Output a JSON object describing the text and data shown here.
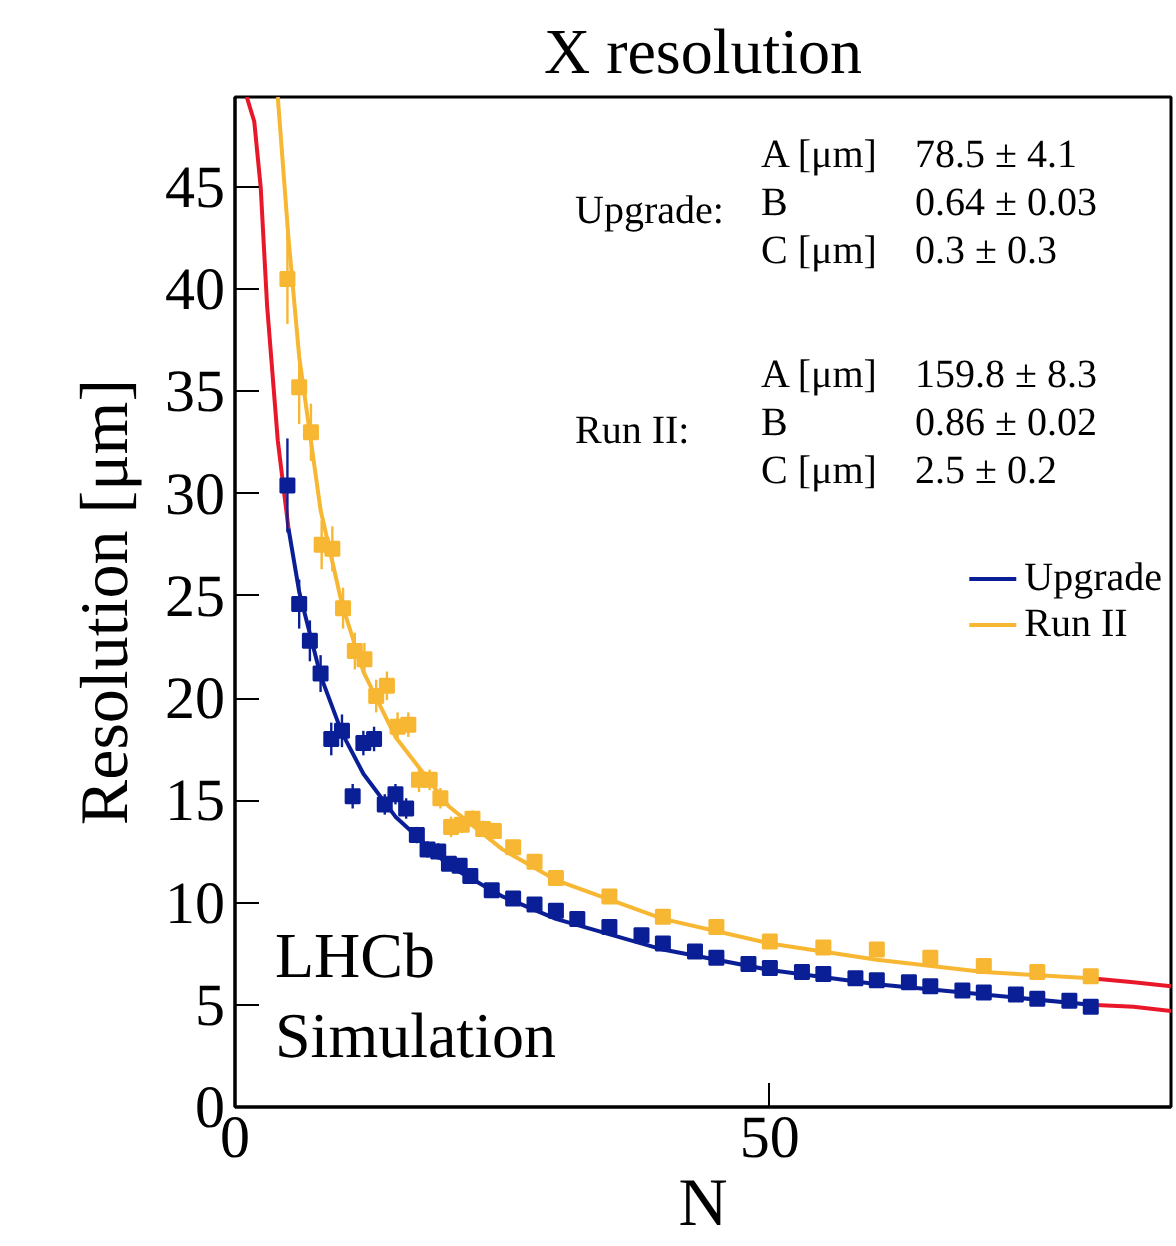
{
  "chart_data": {
    "type": "scatter",
    "title": "X resolution",
    "xlabel": "N",
    "ylabel": "Resolution [μm]",
    "xlim": [
      0,
      87.5
    ],
    "ylim": [
      0,
      49.4
    ],
    "xticks": [
      0,
      50
    ],
    "yticks": [
      0,
      5,
      10,
      15,
      20,
      25,
      30,
      35,
      40,
      45
    ],
    "grid": false,
    "legend": "right",
    "marker": "square",
    "line_style": "solid",
    "annotations": [
      "LHCb",
      "Simulation",
      "Upgrade:",
      "A [μm]",
      "78.5 ± 4.1",
      "B",
      "0.64 ± 0.03",
      "C [μm]",
      "0.3 ± 0.3",
      "Run II:",
      "A [μm]",
      "159.8 ± 8.3",
      "B",
      "0.86 ± 0.02",
      "C [μm]",
      "2.5 ± 0.2"
    ],
    "series": [
      {
        "type": "line",
        "marker": "none",
        "color": "#e8182a",
        "x": [
          1.1,
          1.8,
          2.4,
          3,
          4,
          5
        ],
        "values": [
          49.4,
          48.2,
          45,
          39.2,
          32.6,
          28.3
        ]
      },
      {
        "type": "line",
        "marker": "none",
        "color": "#e8182a",
        "x": [
          80,
          84,
          87.5
        ],
        "values": [
          5.0,
          4.9,
          4.7
        ]
      },
      {
        "type": "line",
        "marker": "none",
        "color": "#e8182a",
        "x": [
          80,
          84,
          87.5
        ],
        "values": [
          6.3,
          6.1,
          5.9
        ]
      },
      {
        "name": "Upgrade",
        "type": "line",
        "marker": "none",
        "color": "#0a1f96",
        "x": [
          5,
          6,
          8,
          10,
          12,
          15,
          20,
          25,
          30,
          40,
          50,
          60,
          70,
          80
        ],
        "values": [
          28.3,
          25.2,
          21.1,
          18.3,
          16.3,
          14.2,
          11.8,
          10.3,
          9.2,
          7.7,
          6.7,
          6.0,
          5.5,
          5.0
        ]
      },
      {
        "name": "Run II",
        "type": "line",
        "marker": "none",
        "color": "#f7b733",
        "x": [
          4,
          5,
          6,
          8,
          10,
          12,
          15,
          20,
          25,
          30,
          40,
          50,
          60,
          70,
          80
        ],
        "values": [
          49.4,
          42.5,
          36.7,
          29.2,
          24.6,
          21.3,
          18.1,
          14.7,
          12.6,
          11.1,
          9.2,
          8.0,
          7.2,
          6.6,
          6.3
        ]
      },
      {
        "color": "#0a1f96",
        "x": [
          4.9,
          6,
          7,
          8,
          9,
          10,
          11,
          12,
          13,
          14,
          15,
          16,
          17,
          18,
          19,
          20,
          21,
          22,
          24,
          26,
          28,
          30,
          32,
          35,
          38,
          40,
          43,
          45,
          48,
          50,
          53,
          55,
          58,
          60,
          63,
          65,
          68,
          70,
          73,
          75,
          78,
          80
        ],
        "values": [
          30.4,
          24.6,
          22.8,
          21.2,
          18.0,
          18.4,
          15.2,
          17.8,
          18.0,
          14.8,
          15.3,
          14.6,
          13.3,
          12.6,
          12.5,
          11.9,
          11.8,
          11.3,
          10.6,
          10.2,
          9.9,
          9.6,
          9.2,
          8.8,
          8.4,
          8.0,
          7.6,
          7.3,
          7.0,
          6.8,
          6.6,
          6.5,
          6.3,
          6.2,
          6.1,
          5.9,
          5.7,
          5.6,
          5.5,
          5.3,
          5.2,
          4.9
        ],
        "errors": [
          2.3,
          1.2,
          1.0,
          0.9,
          0.8,
          0.8,
          0.6,
          0.6,
          0.6,
          0.5,
          0.5,
          0.5,
          0.4,
          0.4,
          0.4,
          0.3,
          0.3,
          0.3,
          0.3,
          0.3,
          0.3,
          0.3,
          0.3,
          0.3,
          0.3,
          0.3,
          0.3,
          0.3,
          0.3,
          0.3,
          0.3,
          0.3,
          0.3,
          0.3,
          0.3,
          0.3,
          0.3,
          0.3,
          0.3,
          0.3,
          0.3,
          0.3
        ]
      },
      {
        "color": "#f7b733",
        "x": [
          4.9,
          6,
          7.1,
          8.1,
          9.1,
          10.1,
          11.2,
          12.1,
          13.2,
          14.2,
          15.2,
          16.2,
          17.2,
          18.2,
          19.2,
          20.2,
          21.2,
          22.2,
          23.2,
          24.2,
          26,
          28,
          30,
          35,
          40,
          45,
          50,
          55,
          60,
          65,
          70,
          75,
          80
        ],
        "values": [
          40.5,
          35.2,
          33.0,
          27.5,
          27.3,
          24.4,
          22.3,
          21.9,
          20.1,
          20.6,
          18.6,
          18.7,
          16.0,
          16.0,
          15.1,
          13.7,
          13.8,
          14.1,
          13.6,
          13.5,
          12.7,
          12.0,
          11.2,
          10.3,
          9.3,
          8.8,
          8.1,
          7.8,
          7.7,
          7.3,
          6.9,
          6.6,
          6.4
        ],
        "errors": [
          2.2,
          1.8,
          1.4,
          1.2,
          1.1,
          1.0,
          0.9,
          0.8,
          0.8,
          0.7,
          0.7,
          0.6,
          0.6,
          0.5,
          0.5,
          0.5,
          0.4,
          0.4,
          0.4,
          0.4,
          0.3,
          0.3,
          0.3,
          0.3,
          0.3,
          0.3,
          0.3,
          0.3,
          0.3,
          0.3,
          0.3,
          0.3,
          0.3
        ]
      }
    ]
  }
}
